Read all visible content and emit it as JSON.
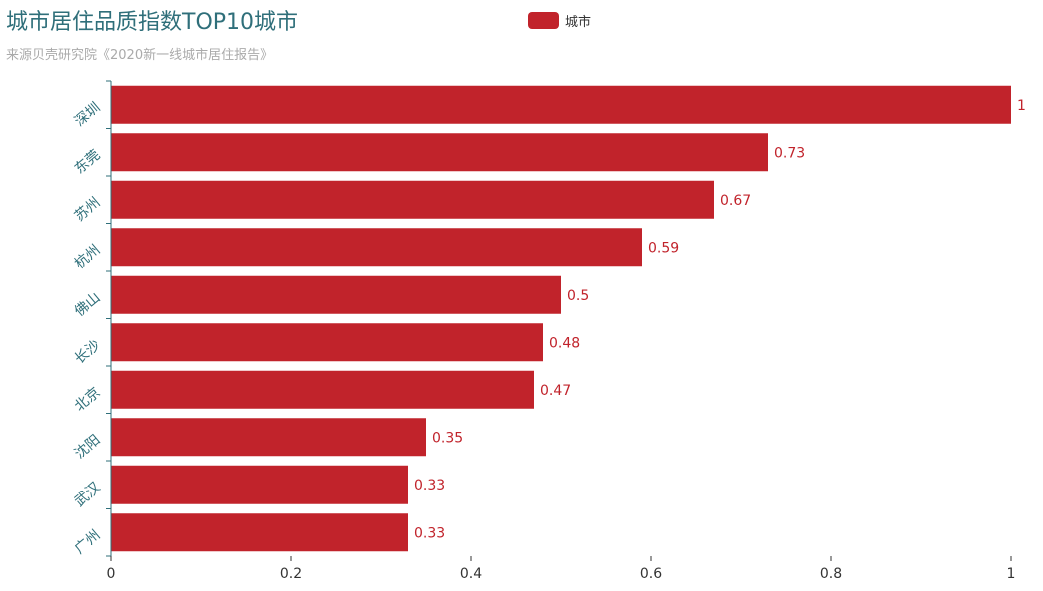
{
  "title": "城市居住品质指数TOP10城市",
  "subtitle": "来源贝壳研究院《2020新一线城市居住报告》",
  "legend": {
    "label": "城市"
  },
  "colors": {
    "bar": "#c1232b",
    "axis": "#2f6f7a",
    "label": "#c1232b",
    "tick_text": "#333333"
  },
  "chart_data": {
    "type": "bar",
    "orientation": "horizontal",
    "categories": [
      "深圳",
      "东莞",
      "苏州",
      "杭州",
      "佛山",
      "长沙",
      "北京",
      "沈阳",
      "武汉",
      "广州"
    ],
    "series": [
      {
        "name": "城市",
        "values": [
          1,
          0.73,
          0.67,
          0.59,
          0.5,
          0.48,
          0.47,
          0.35,
          0.33,
          0.33
        ]
      }
    ],
    "value_labels": [
      "1",
      "0.73",
      "0.67",
      "0.59",
      "0.5",
      "0.48",
      "0.47",
      "0.35",
      "0.33",
      "0.33"
    ],
    "xlim": [
      0,
      1
    ],
    "xticks": [
      0,
      0.2,
      0.4,
      0.6,
      0.8,
      1
    ],
    "xtick_labels": [
      "0",
      "0.2",
      "0.4",
      "0.6",
      "0.8",
      "1"
    ],
    "grid": false,
    "legend_position": "top-center"
  }
}
